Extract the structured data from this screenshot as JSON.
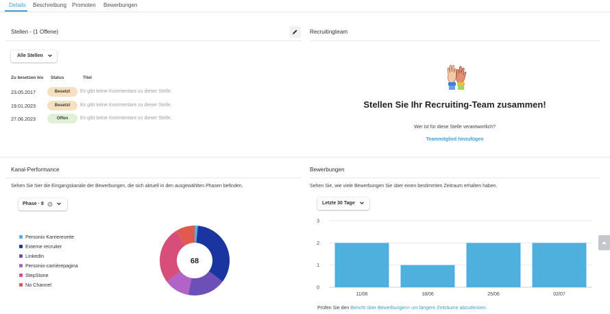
{
  "tabs": [
    {
      "label": "Details"
    },
    {
      "label": "Beschreibung"
    },
    {
      "label": "Promoten"
    },
    {
      "label": "Bewerbungen"
    }
  ],
  "stellen": {
    "title": "Stellen - (1 Offene)",
    "filter_label": "Alle Stellen",
    "columns": [
      "Zu besetzen bis",
      "Status",
      "Titel"
    ],
    "rows": [
      {
        "date": "23.05.2017",
        "status": "Besetzt",
        "comment": "Es gibt keine Kommentare zu dieser Stelle."
      },
      {
        "date": "19.01.2023",
        "status": "Besetzt",
        "comment": "Es gibt keine Kommentare zu dieser Stelle."
      },
      {
        "date": "27.06.2023",
        "status": "Offen",
        "comment": "Es gibt keine Kommentare zu dieser Stelle."
      }
    ]
  },
  "recruiting": {
    "title": "Recruitingteam",
    "headline": "Stellen Sie Ihr Recruiting-Team zusammen!",
    "question": "Wer ist für diese Stelle verantwortlich?",
    "link": "Teammitglied hinzufügen"
  },
  "kanal": {
    "title": "Kanal-Performance",
    "description": "Sehen Sie hier die Eingangskanäle der Bewerbungen, die sich aktuell in den ausgewählten Phasen befinden.",
    "filter_label": "Phase · 8",
    "total": "68"
  },
  "bewerbungen": {
    "title": "Bewerbungen",
    "description": "Sehen Sie, wie viele Bewerbungen Sie über einen bestimmten Zeitraum erhalten haben.",
    "filter_label": "Letzte 30 Tage",
    "footer_prefix": "Prüfen Sie den ",
    "footer_link": "Bericht über Bewerbungen> um längere Zeiträume abzudecken."
  },
  "chart_data": [
    {
      "type": "pie",
      "center_label": "68",
      "categories": [
        "Personio Karriereseite",
        "Externe recruiter",
        "LinkedIn",
        "Personio-carrièrepagina",
        "StepStone",
        "No Channel"
      ],
      "values": [
        1,
        23,
        12,
        8,
        18,
        6
      ],
      "colors": [
        "#4fb0de",
        "#1a34a0",
        "#6d4fb8",
        "#b163c8",
        "#d84e7a",
        "#e25a4e"
      ]
    },
    {
      "type": "bar",
      "categories": [
        "11/06",
        "18/06",
        "25/06",
        "02/07"
      ],
      "values": [
        2,
        1,
        2,
        2
      ],
      "ylim": [
        0,
        3
      ],
      "yticks": [
        "0",
        "1",
        "2",
        "3"
      ],
      "grid": true,
      "bar_color": "#4fb0de"
    }
  ]
}
